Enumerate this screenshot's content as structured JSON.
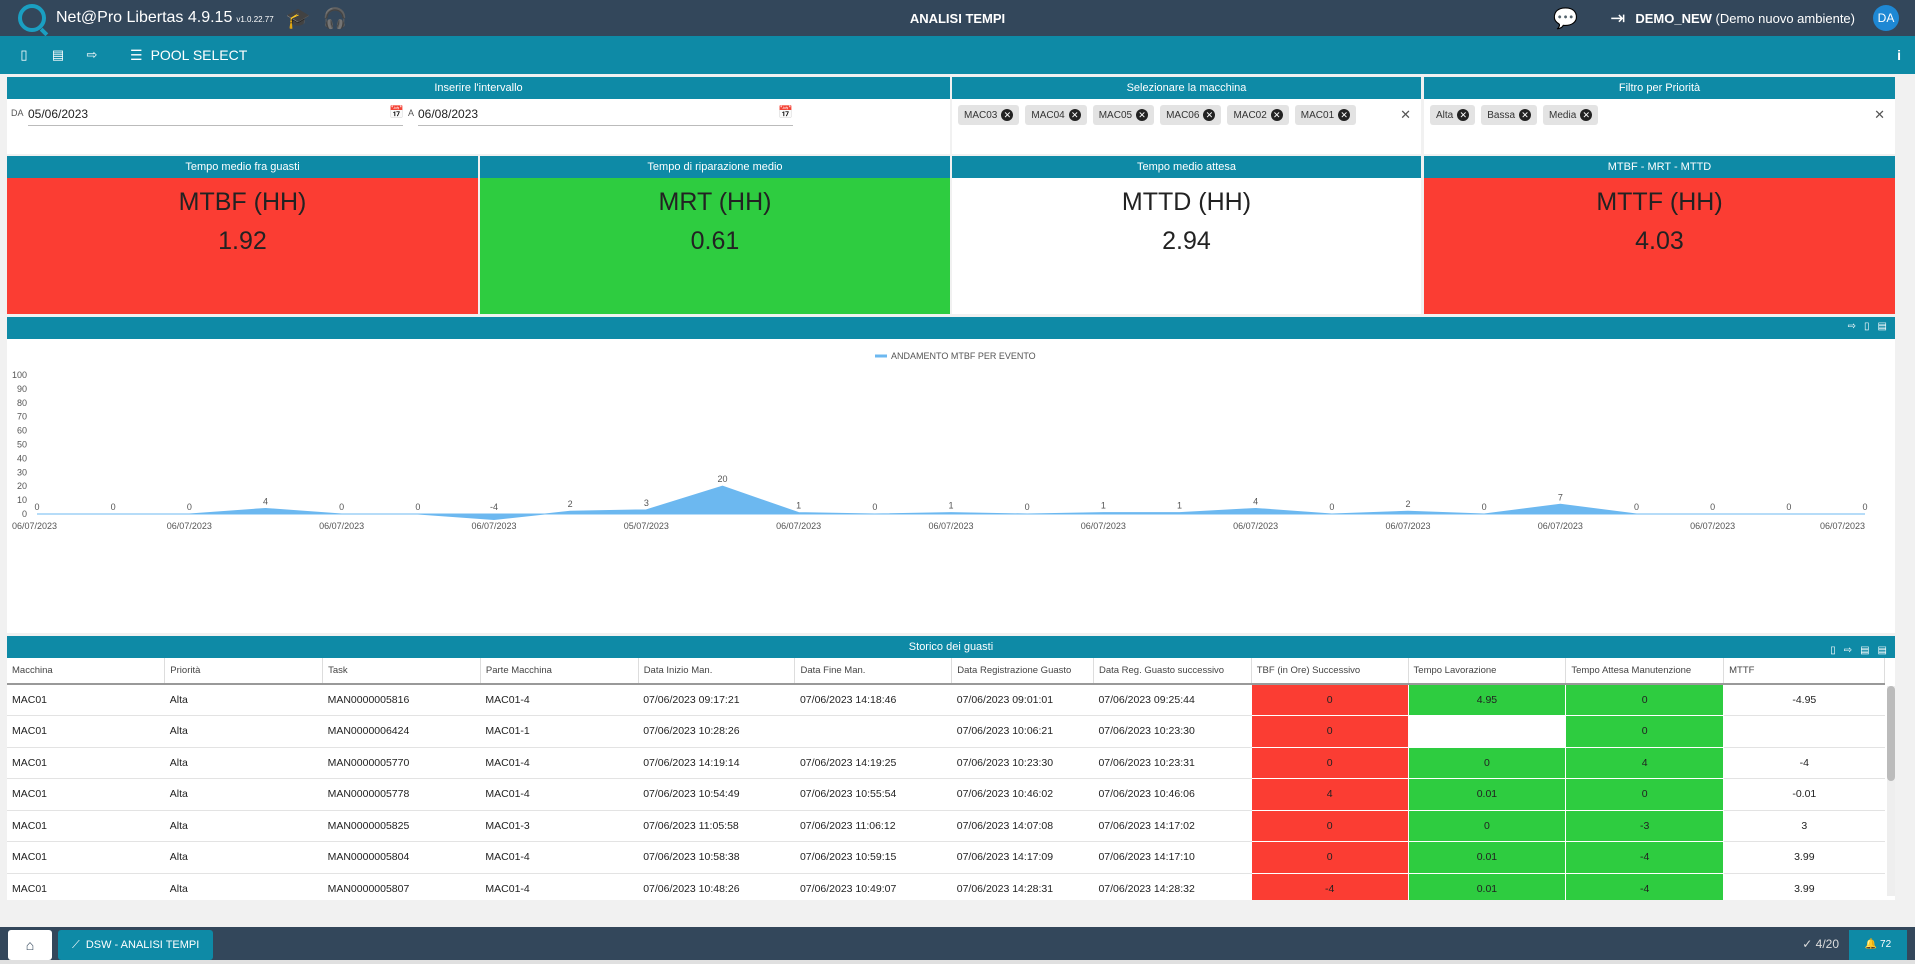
{
  "app": {
    "name": "Net@Pro Libertas 4.9.15",
    "version": "v1.0.22.77",
    "page_title": "ANALISI TEMPI",
    "user_name": "DEMO_NEW",
    "environment": "(Demo nuovo ambiente)",
    "avatar": "DA"
  },
  "toolbar": {
    "pool_select": "POOL SELECT",
    "info": "i"
  },
  "filters": {
    "interval_title": "Inserire l'intervallo",
    "from_label": "DA",
    "from_value": "05/06/2023",
    "to_label": "A",
    "to_value": "06/08/2023",
    "machine_title": "Selezionare la macchina",
    "machines": [
      "MAC03",
      "MAC04",
      "MAC05",
      "MAC06",
      "MAC02",
      "MAC01"
    ],
    "priority_title": "Filtro per Priorità",
    "priorities": [
      "Alta",
      "Bassa",
      "Media"
    ]
  },
  "kpis": [
    {
      "title": "Tempo medio fra guasti",
      "name": "MTBF (HH)",
      "value": "1.92",
      "color": "#fb3d33"
    },
    {
      "title": "Tempo di riparazione medio",
      "name": "MRT (HH)",
      "value": "0.61",
      "color": "#2ecc40"
    },
    {
      "title": "Tempo medio attesa",
      "name": "MTTD (HH)",
      "value": "2.94",
      "color": "#ffffff"
    },
    {
      "title": "MTBF - MRT - MTTD",
      "name": "MTTF (HH)",
      "value": "4.03",
      "color": "#fb3d33"
    }
  ],
  "chart_data": {
    "type": "area",
    "legend": "ANDAMENTO MTBF PER EVENTO",
    "legend_position": "top",
    "color": "#6cb8f0",
    "ylim": [
      0,
      100
    ],
    "yticks": [
      0,
      10,
      20,
      30,
      40,
      50,
      60,
      70,
      80,
      90,
      100
    ],
    "x": [
      "06/07/2023",
      "06/07/2023",
      "06/07/2023",
      "06/07/2023",
      "06/07/2023",
      "06/07/2023",
      "06/07/2023",
      "06/07/2023",
      "06/07/2023",
      "06/07/2023",
      "06/07/2023",
      "06/07/2023",
      "06/07/2023",
      "06/07/2023",
      "06/07/2023",
      "06/07/2023",
      "06/07/2023",
      "06/07/2023",
      "06/07/2023",
      "06/07/2023",
      "06/07/2023",
      "06/07/2023",
      "06/07/2023",
      "06/07/2023",
      "06/07/2023"
    ],
    "values": [
      0,
      0,
      0,
      4,
      0,
      0,
      -4,
      2,
      3,
      20,
      1,
      0,
      1,
      0,
      1,
      1,
      4,
      0,
      2,
      0,
      7,
      0,
      0,
      0,
      0
    ],
    "xtick_labels": [
      "06/07/2023",
      "06/07/2023",
      "06/07/2023",
      "06/07/2023",
      "05/07/2023",
      "06/07/2023",
      "06/07/2023",
      "06/07/2023",
      "06/07/2023",
      "06/07/2023",
      "06/07/2023",
      "06/07/2023",
      "06/07/2023"
    ]
  },
  "history": {
    "title": "Storico dei guasti",
    "columns": [
      "Macchina",
      "Priorità",
      "Task",
      "Parte Macchina",
      "Data Inizio Man.",
      "Data Fine Man.",
      "Data Registrazione Guasto",
      "Data Reg. Guasto successivo",
      "TBF (in Ore) Successivo",
      "Tempo Lavorazione",
      "Tempo Attesa Manutenzione",
      "MTTF"
    ],
    "rows": [
      [
        "MAC01",
        "Alta",
        "MAN0000005816",
        "MAC01-4",
        "07/06/2023 09:17:21",
        "07/06/2023 14:18:46",
        "07/06/2023 09:01:01",
        "07/06/2023 09:25:44",
        "0",
        "4.95",
        "0",
        "-4.95"
      ],
      [
        "MAC01",
        "Alta",
        "MAN0000006424",
        "MAC01-1",
        "07/06/2023 10:28:26",
        "",
        "07/06/2023 10:06:21",
        "07/06/2023 10:23:30",
        "0",
        "",
        "0",
        ""
      ],
      [
        "MAC01",
        "Alta",
        "MAN0000005770",
        "MAC01-4",
        "07/06/2023 14:19:14",
        "07/06/2023 14:19:25",
        "07/06/2023 10:23:30",
        "07/06/2023 10:23:31",
        "0",
        "0",
        "4",
        "-4"
      ],
      [
        "MAC01",
        "Alta",
        "MAN0000005778",
        "MAC01-4",
        "07/06/2023 10:54:49",
        "07/06/2023 10:55:54",
        "07/06/2023 10:46:02",
        "07/06/2023 10:46:06",
        "4",
        "0.01",
        "0",
        "-0.01"
      ],
      [
        "MAC01",
        "Alta",
        "MAN0000005825",
        "MAC01-3",
        "07/06/2023 11:05:58",
        "07/06/2023 11:06:12",
        "07/06/2023 14:07:08",
        "07/06/2023 14:17:02",
        "0",
        "0",
        "-3",
        "3"
      ],
      [
        "MAC01",
        "Alta",
        "MAN0000005804",
        "MAC01-4",
        "07/06/2023 10:58:38",
        "07/06/2023 10:59:15",
        "07/06/2023 14:17:09",
        "07/06/2023 14:17:10",
        "0",
        "0.01",
        "-4",
        "3.99"
      ],
      [
        "MAC01",
        "Alta",
        "MAN0000005807",
        "MAC01-4",
        "07/06/2023 10:48:26",
        "07/06/2023 10:49:07",
        "07/06/2023 14:28:31",
        "07/06/2023 14:28:32",
        "-4",
        "0.01",
        "-4",
        "3.99"
      ]
    ]
  },
  "bottom": {
    "tab_label": "DSW - ANALISI TEMPI",
    "counter": "4/20",
    "notifications": "72"
  }
}
